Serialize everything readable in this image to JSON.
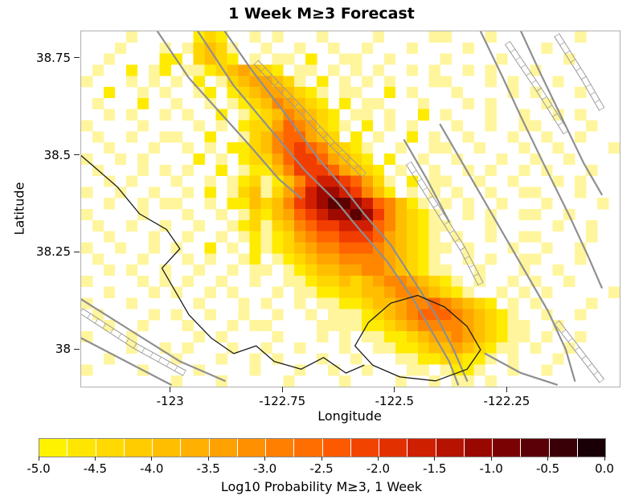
{
  "title": "1 Week M≥3 Forecast",
  "axes": {
    "xlabel": "Longitude",
    "ylabel": "Latitude",
    "lon_range": [
      -123.2,
      -122.0
    ],
    "lat_range": [
      37.905,
      38.82
    ],
    "x_ticks": [
      -123,
      -122.75,
      -122.5,
      -122.25
    ],
    "x_tick_labels": [
      "-123",
      "-122.75",
      "-122.5",
      "-122.25"
    ],
    "y_ticks": [
      38,
      38.25,
      38.5,
      38.75
    ],
    "y_tick_labels": [
      "38",
      "38.25",
      "38.5",
      "38.75"
    ]
  },
  "colorbar": {
    "label": "Log10 Probability M≥3, 1 Week",
    "min": -5.0,
    "max": 0.0,
    "tick_labels": [
      "-5.0",
      "-4.5",
      "-4.0",
      "-3.5",
      "-3.0",
      "-2.5",
      "-2.0",
      "-1.5",
      "-1.0",
      "-0.5",
      "0.0"
    ],
    "colors": [
      "#FFF200",
      "#FFE600",
      "#FFD900",
      "#FFCC00",
      "#FFBE00",
      "#FFB000",
      "#FFA100",
      "#FF9100",
      "#FF8000",
      "#FF6E00",
      "#FD5A00",
      "#F24400",
      "#E23000",
      "#CE1F00",
      "#B51200",
      "#990800",
      "#7A0203",
      "#5A0006",
      "#3A0008",
      "#180006"
    ]
  },
  "chart_data": {
    "type": "heatmap",
    "quantity": "log10 probability of M>=3 earthquake in 1 week",
    "grid_cols": 48,
    "grid_rows": 32,
    "encoding": "each row string: '.'=no value (white); characters 1-9,a,b = increasing probability level",
    "level_values": {
      "1": -5.0,
      "2": -4.6,
      "3": -4.2,
      "4": -3.8,
      "5": -3.4,
      "6": -3.0,
      "7": -2.6,
      "8": -2.2,
      "9": -1.8,
      "a": -1.4,
      "b": -1.0
    },
    "palette": {
      "1": "#FFF59D",
      "2": "#FFEB00",
      "3": "#FFD600",
      "4": "#FFBF00",
      "5": "#FFA500",
      "6": "#FF8700",
      "7": "#FF6400",
      "8": "#F23D00",
      "9": "#D01F00",
      "a": "#9E0A00",
      "b": "#5C0000"
    },
    "hotspot": {
      "lon": -122.6,
      "lat": 38.38,
      "level": "b"
    },
    "rows": [
      "....1.....232..1.1...1....1....11...1.......1...",
      "...1...1.13431..1..1..1..1...1....1......1......",
      "..1....22.3432.1.11.2..11..1....1....1.....1....",
      ".1..2.12.112345432.11.1.1.1..1.1..1.1...1.......",
      "1...1.1.1.2.13455431.2.1.1.1...11...1.1...1.....",
      "..2..1.1..12.234554321.11..2.1...1....1.1...1...",
      ".1...2..1..1.123465432.2.11...1...1.1....1......",
      "..1.1..1.1..2.123465432.11.1..2.1...1..1..1.1...",
      "1....1....1.1.2335765321.2.1.1...1..1..11....1..",
      ".1..1..11..2..134677543.2.1..2.1..1...1..1..1...",
      "..1...1..1.1.2234678764321..1..11..1...1..1....1",
      "1..1.1....2.1.233578875432.2..1..1...1..1..1....",
      ".1...1.1.1..2.1224688875432.1..1..1.1..1.1...1..",
      "..1.1...1..1.123124689987531.2.11..1..1...1.1...",
      "1..1..1..1.2.13413579aa98642.1.1.1..1..11...1...",
      "..1..1.11..1.22434689abba976421.1.1..1...1....1.",
      "1....1...1..1.13245789aaba864321..1.1..11..1....",
      ".1..1..1..1..12313467889997643211...1.....1..1..",
      "..1...1..1..1.121235677888754321.1..1..11....1..",
      "1..1..1.1..2.1.212345667776543211.1...1..1..1...",
      ".1...1...1.1..12.123455666654321..1.1..11...1...",
      "..1.1..1..1..1.11.123445566543211..1...1..1.....",
      "1....1.1.1..1..1..1123343456654321.1..1.1..1....",
      "..1...1.1..1.1...1.1122334456654321..1.1.1.....1",
      "1...1.....1...1.1..1.1122344566765432.1.1....1..",
      ".1....1.1..1..1..1..1.11123456777654321..1..1...",
      "..1..1...1...1.11....1111223456666543211..1.....",
      "1...1.....1.1....1...1.1.112234556543211.1..1...",
      "....1..1.1...1..1..1...1..1122344543211.1..1....",
      "..1.....1...1..1.1...1..1...112233221.1...1.....",
      "1....1....1....1...1..1..1...11.1221..1..1......",
      "........1...1.....1....1....1..1.11.1..........."
    ]
  },
  "overlays": {
    "gray_color": "#8f8f8f",
    "black_color": "#1c1c1c",
    "ladder_color": "#9a9a9a",
    "gray_lines": [
      [
        [
          -122.88,
          38.82
        ],
        [
          -122.82,
          38.72
        ],
        [
          -122.74,
          38.6
        ],
        [
          -122.67,
          38.49
        ],
        [
          -122.61,
          38.41
        ],
        [
          -122.57,
          38.35
        ],
        [
          -122.51,
          38.27
        ],
        [
          -122.46,
          38.18
        ],
        [
          -122.41,
          38.09
        ],
        [
          -122.37,
          38.0
        ],
        [
          -122.34,
          37.92
        ]
      ],
      [
        [
          -122.94,
          38.82
        ],
        [
          -122.86,
          38.68
        ],
        [
          -122.78,
          38.57
        ],
        [
          -122.7,
          38.46
        ],
        [
          -122.63,
          38.38
        ],
        [
          -122.58,
          38.31
        ],
        [
          -122.52,
          38.23
        ],
        [
          -122.46,
          38.13
        ],
        [
          -122.42,
          38.05
        ],
        [
          -122.38,
          37.97
        ],
        [
          -122.36,
          37.91
        ]
      ],
      [
        [
          -123.03,
          38.82
        ],
        [
          -122.96,
          38.7
        ],
        [
          -122.89,
          38.61
        ],
        [
          -122.82,
          38.52
        ],
        [
          -122.76,
          38.44
        ],
        [
          -122.71,
          38.39
        ]
      ],
      [
        [
          -123.2,
          38.13
        ],
        [
          -123.09,
          38.05
        ],
        [
          -122.98,
          37.97
        ],
        [
          -122.88,
          37.92
        ]
      ],
      [
        [
          -123.2,
          38.03
        ],
        [
          -123.1,
          37.97
        ],
        [
          -123.0,
          37.91
        ]
      ],
      [
        [
          -122.31,
          38.82
        ],
        [
          -122.26,
          38.7
        ],
        [
          -122.22,
          38.6
        ],
        [
          -122.17,
          38.48
        ],
        [
          -122.11,
          38.34
        ],
        [
          -122.07,
          38.24
        ],
        [
          -122.04,
          38.16
        ]
      ],
      [
        [
          -122.22,
          38.82
        ],
        [
          -122.18,
          38.72
        ],
        [
          -122.13,
          38.6
        ],
        [
          -122.08,
          38.48
        ],
        [
          -122.04,
          38.4
        ]
      ],
      [
        [
          -122.4,
          38.58
        ],
        [
          -122.34,
          38.46
        ],
        [
          -122.28,
          38.34
        ],
        [
          -122.22,
          38.22
        ],
        [
          -122.16,
          38.1
        ],
        [
          -122.12,
          38.0
        ],
        [
          -122.1,
          37.92
        ]
      ],
      [
        [
          -122.48,
          38.54
        ],
        [
          -122.43,
          38.44
        ],
        [
          -122.38,
          38.33
        ]
      ],
      [
        [
          -122.3,
          37.99
        ],
        [
          -122.22,
          37.94
        ],
        [
          -122.14,
          37.91
        ]
      ]
    ],
    "black_lines": [
      [
        [
          -123.2,
          38.5
        ],
        [
          -123.12,
          38.42
        ],
        [
          -123.07,
          38.35
        ],
        [
          -123.01,
          38.31
        ],
        [
          -122.98,
          38.26
        ],
        [
          -123.02,
          38.21
        ],
        [
          -122.99,
          38.15
        ],
        [
          -122.96,
          38.09
        ],
        [
          -122.91,
          38.03
        ],
        [
          -122.86,
          37.99
        ],
        [
          -122.81,
          38.01
        ],
        [
          -122.77,
          37.97
        ],
        [
          -122.71,
          37.95
        ],
        [
          -122.66,
          37.98
        ],
        [
          -122.61,
          37.94
        ],
        [
          -122.57,
          37.96
        ]
      ],
      [
        [
          -122.59,
          38.01
        ],
        [
          -122.56,
          38.07
        ],
        [
          -122.51,
          38.12
        ],
        [
          -122.45,
          38.14
        ],
        [
          -122.39,
          38.11
        ],
        [
          -122.34,
          38.06
        ],
        [
          -122.31,
          38.0
        ],
        [
          -122.34,
          37.95
        ],
        [
          -122.41,
          37.92
        ],
        [
          -122.49,
          37.93
        ],
        [
          -122.55,
          37.96
        ],
        [
          -122.59,
          38.01
        ]
      ]
    ],
    "ladder_lines": [
      [
        [
          -122.81,
          38.74
        ],
        [
          -122.72,
          38.63
        ],
        [
          -122.64,
          38.53
        ],
        [
          -122.57,
          38.45
        ]
      ],
      [
        [
          -122.47,
          38.48
        ],
        [
          -122.41,
          38.37
        ],
        [
          -122.35,
          38.26
        ],
        [
          -122.31,
          38.17
        ]
      ],
      [
        [
          -122.25,
          38.79
        ],
        [
          -122.18,
          38.67
        ],
        [
          -122.12,
          38.56
        ]
      ],
      [
        [
          -122.14,
          38.81
        ],
        [
          -122.08,
          38.7
        ],
        [
          -122.04,
          38.62
        ]
      ],
      [
        [
          -123.2,
          38.1
        ],
        [
          -123.08,
          38.01
        ],
        [
          -122.97,
          37.94
        ]
      ],
      [
        [
          -122.14,
          38.07
        ],
        [
          -122.08,
          37.98
        ],
        [
          -122.04,
          37.92
        ]
      ]
    ]
  }
}
